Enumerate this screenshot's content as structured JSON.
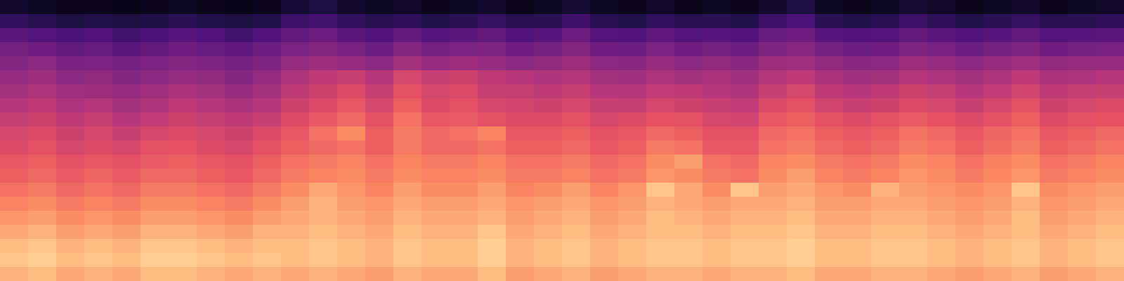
{
  "chart_data": {
    "type": "heatmap",
    "tick_labels": false,
    "color_range": [
      0,
      100
    ],
    "z": [
      [
        8,
        6,
        5,
        5,
        4,
        5,
        6,
        5,
        4,
        5,
        10,
        12,
        8,
        6,
        7,
        5,
        6,
        8,
        5,
        6,
        9,
        6,
        5,
        7,
        5,
        6,
        5,
        8,
        12,
        6,
        5,
        6,
        9,
        7,
        5,
        6,
        8,
        5,
        6,
        7
      ],
      [
        18,
        15,
        12,
        14,
        12,
        13,
        16,
        14,
        12,
        14,
        20,
        22,
        18,
        15,
        17,
        14,
        16,
        19,
        15,
        16,
        21,
        15,
        14,
        18,
        15,
        16,
        14,
        20,
        24,
        16,
        14,
        15,
        20,
        17,
        14,
        16,
        19,
        15,
        16,
        17
      ],
      [
        28,
        26,
        24,
        25,
        22,
        24,
        27,
        25,
        22,
        25,
        30,
        32,
        28,
        25,
        30,
        26,
        28,
        30,
        25,
        27,
        32,
        26,
        25,
        29,
        26,
        27,
        25,
        31,
        33,
        27,
        25,
        26,
        30,
        28,
        25,
        27,
        30,
        26,
        27,
        28
      ],
      [
        34,
        33,
        30,
        31,
        28,
        30,
        33,
        31,
        29,
        32,
        36,
        38,
        35,
        32,
        38,
        34,
        36,
        37,
        33,
        34,
        38,
        33,
        32,
        36,
        33,
        34,
        32,
        37,
        39,
        34,
        32,
        33,
        37,
        35,
        32,
        34,
        37,
        33,
        34,
        35
      ],
      [
        38,
        40,
        35,
        36,
        34,
        36,
        38,
        37,
        34,
        37,
        42,
        44,
        42,
        40,
        46,
        42,
        44,
        43,
        40,
        41,
        44,
        40,
        39,
        43,
        40,
        41,
        39,
        44,
        45,
        41,
        39,
        40,
        44,
        42,
        40,
        42,
        45,
        41,
        42,
        43
      ],
      [
        42,
        44,
        40,
        41,
        38,
        40,
        42,
        41,
        38,
        42,
        48,
        52,
        55,
        50,
        58,
        54,
        56,
        52,
        50,
        48,
        50,
        46,
        45,
        48,
        46,
        47,
        45,
        50,
        52,
        47,
        45,
        46,
        50,
        48,
        46,
        48,
        52,
        47,
        48,
        50
      ],
      [
        46,
        48,
        45,
        44,
        42,
        45,
        47,
        46,
        43,
        46,
        52,
        56,
        60,
        55,
        62,
        58,
        60,
        55,
        54,
        52,
        55,
        50,
        50,
        53,
        52,
        50,
        48,
        55,
        58,
        52,
        50,
        52,
        56,
        54,
        50,
        53,
        57,
        52,
        54,
        55
      ],
      [
        50,
        52,
        48,
        50,
        46,
        49,
        52,
        50,
        47,
        50,
        56,
        60,
        64,
        58,
        66,
        60,
        62,
        58,
        57,
        56,
        58,
        55,
        54,
        58,
        56,
        55,
        53,
        60,
        62,
        57,
        55,
        56,
        60,
        58,
        55,
        58,
        62,
        56,
        58,
        60
      ],
      [
        54,
        56,
        52,
        55,
        50,
        53,
        56,
        54,
        52,
        55,
        60,
        64,
        68,
        62,
        70,
        64,
        65,
        62,
        60,
        60,
        62,
        58,
        60,
        63,
        62,
        58,
        57,
        64,
        66,
        62,
        60,
        62,
        65,
        63,
        60,
        62,
        66,
        60,
        62,
        63
      ],
      [
        58,
        60,
        56,
        58,
        55,
        58,
        60,
        58,
        56,
        60,
        64,
        70,
        76,
        66,
        72,
        68,
        70,
        74,
        64,
        64,
        66,
        62,
        64,
        68,
        66,
        62,
        62,
        68,
        70,
        66,
        64,
        66,
        70,
        68,
        64,
        67,
        70,
        64,
        66,
        68
      ],
      [
        60,
        62,
        58,
        60,
        58,
        62,
        63,
        60,
        58,
        62,
        66,
        68,
        70,
        66,
        72,
        68,
        68,
        70,
        66,
        66,
        68,
        64,
        66,
        72,
        70,
        64,
        64,
        70,
        72,
        68,
        66,
        68,
        72,
        70,
        66,
        69,
        72,
        66,
        68,
        70
      ],
      [
        64,
        66,
        62,
        64,
        62,
        65,
        66,
        64,
        62,
        66,
        70,
        72,
        74,
        70,
        74,
        72,
        72,
        74,
        70,
        70,
        72,
        68,
        70,
        76,
        80,
        70,
        68,
        74,
        76,
        72,
        70,
        72,
        76,
        74,
        70,
        73,
        76,
        70,
        72,
        74
      ],
      [
        66,
        68,
        65,
        67,
        65,
        68,
        68,
        66,
        64,
        68,
        72,
        74,
        76,
        72,
        76,
        74,
        74,
        76,
        72,
        72,
        74,
        70,
        72,
        78,
        76,
        72,
        70,
        76,
        80,
        74,
        72,
        74,
        78,
        76,
        72,
        75,
        78,
        72,
        74,
        76
      ],
      [
        70,
        72,
        68,
        70,
        68,
        72,
        72,
        70,
        68,
        72,
        76,
        82,
        78,
        74,
        80,
        76,
        76,
        80,
        74,
        76,
        80,
        74,
        78,
        88,
        82,
        76,
        88,
        80,
        82,
        78,
        76,
        84,
        80,
        78,
        76,
        78,
        88,
        76,
        78,
        80
      ],
      [
        74,
        76,
        72,
        74,
        72,
        76,
        76,
        74,
        72,
        76,
        80,
        84,
        80,
        78,
        82,
        80,
        80,
        82,
        78,
        80,
        82,
        78,
        80,
        84,
        82,
        80,
        82,
        82,
        84,
        80,
        80,
        82,
        82,
        80,
        78,
        80,
        84,
        78,
        80,
        82
      ],
      [
        78,
        80,
        76,
        78,
        76,
        80,
        80,
        78,
        76,
        80,
        82,
        84,
        82,
        80,
        84,
        82,
        82,
        84,
        80,
        82,
        84,
        80,
        82,
        86,
        84,
        82,
        84,
        84,
        86,
        82,
        82,
        84,
        84,
        82,
        80,
        82,
        86,
        80,
        82,
        84
      ],
      [
        82,
        84,
        80,
        82,
        80,
        84,
        84,
        82,
        80,
        84,
        84,
        86,
        84,
        82,
        86,
        84,
        84,
        88,
        82,
        84,
        86,
        82,
        84,
        86,
        86,
        84,
        86,
        86,
        88,
        84,
        84,
        86,
        86,
        84,
        82,
        84,
        86,
        82,
        84,
        86
      ],
      [
        86,
        88,
        84,
        86,
        84,
        88,
        88,
        86,
        84,
        86,
        86,
        88,
        86,
        84,
        88,
        86,
        86,
        90,
        84,
        86,
        88,
        84,
        86,
        88,
        88,
        86,
        88,
        88,
        90,
        86,
        86,
        88,
        88,
        86,
        84,
        86,
        88,
        84,
        86,
        88
      ],
      [
        88,
        90,
        86,
        88,
        86,
        90,
        90,
        88,
        86,
        88,
        86,
        88,
        86,
        84,
        88,
        86,
        86,
        90,
        84,
        86,
        88,
        84,
        86,
        88,
        88,
        86,
        88,
        88,
        90,
        86,
        86,
        88,
        88,
        86,
        84,
        86,
        88,
        84,
        86,
        88
      ],
      [
        84,
        86,
        82,
        84,
        82,
        86,
        86,
        84,
        82,
        84,
        82,
        84,
        82,
        80,
        84,
        82,
        82,
        86,
        80,
        82,
        84,
        80,
        82,
        84,
        84,
        82,
        84,
        84,
        86,
        82,
        82,
        84,
        84,
        82,
        80,
        82,
        84,
        80,
        82,
        84
      ]
    ]
  }
}
